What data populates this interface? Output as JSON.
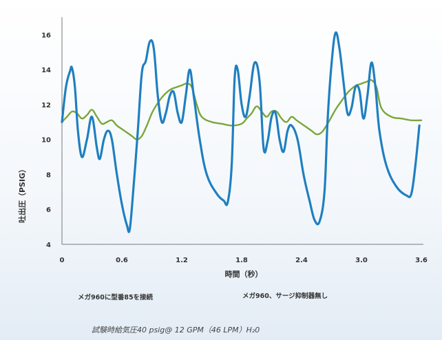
{
  "chart_data": {
    "type": "line",
    "xlabel": "時間（秒）",
    "ylabel": "吐出圧（PSIG）",
    "xlim": [
      0,
      3.6
    ],
    "ylim": [
      4,
      17
    ],
    "x_ticks": [
      "0",
      "0.6",
      "1.2",
      "1.8",
      "2.4",
      "3.0",
      "3.6"
    ],
    "y_ticks": [
      "4",
      "6",
      "8",
      "10",
      "12",
      "14",
      "16"
    ],
    "grid": false,
    "series": [
      {
        "name": "メガ960に型番85を接続",
        "color": "#7aa53a",
        "x": [
          0,
          0.05,
          0.1,
          0.15,
          0.2,
          0.25,
          0.3,
          0.35,
          0.4,
          0.45,
          0.5,
          0.55,
          0.6,
          0.65,
          0.7,
          0.75,
          0.8,
          0.85,
          0.9,
          0.95,
          1.0,
          1.05,
          1.1,
          1.15,
          1.2,
          1.25,
          1.3,
          1.35,
          1.4,
          1.5,
          1.6,
          1.7,
          1.8,
          1.85,
          1.9,
          1.95,
          2.0,
          2.05,
          2.1,
          2.15,
          2.2,
          2.25,
          2.3,
          2.35,
          2.4,
          2.45,
          2.5,
          2.55,
          2.6,
          2.65,
          2.7,
          2.75,
          2.8,
          2.85,
          2.9,
          2.95,
          3.0,
          3.05,
          3.1,
          3.15,
          3.2,
          3.3,
          3.4,
          3.5,
          3.6
        ],
        "values": [
          11.0,
          11.3,
          11.6,
          11.5,
          11.2,
          11.4,
          11.7,
          11.3,
          10.9,
          11.0,
          11.1,
          10.8,
          10.6,
          10.4,
          10.2,
          10.0,
          10.2,
          10.8,
          11.5,
          12.0,
          12.4,
          12.7,
          12.9,
          13.0,
          13.1,
          13.2,
          13.0,
          12.0,
          11.3,
          11.0,
          10.9,
          10.8,
          10.9,
          11.2,
          11.5,
          11.9,
          11.6,
          11.3,
          11.6,
          11.6,
          11.2,
          11.0,
          11.3,
          11.1,
          10.9,
          10.7,
          10.5,
          10.3,
          10.4,
          10.8,
          11.3,
          11.8,
          12.2,
          12.6,
          12.9,
          13.1,
          13.2,
          13.3,
          13.4,
          13.0,
          11.8,
          11.3,
          11.2,
          11.1,
          11.1
        ]
      },
      {
        "name": "メガ960、サージ抑制器無し",
        "color": "#1f7fc0",
        "x": [
          0,
          0.04,
          0.08,
          0.1,
          0.13,
          0.16,
          0.2,
          0.25,
          0.3,
          0.35,
          0.38,
          0.42,
          0.46,
          0.5,
          0.55,
          0.6,
          0.65,
          0.68,
          0.72,
          0.76,
          0.8,
          0.84,
          0.88,
          0.92,
          0.96,
          1.0,
          1.04,
          1.08,
          1.12,
          1.16,
          1.2,
          1.24,
          1.28,
          1.32,
          1.38,
          1.45,
          1.55,
          1.62,
          1.66,
          1.7,
          1.73,
          1.76,
          1.8,
          1.84,
          1.88,
          1.93,
          1.98,
          2.02,
          2.06,
          2.1,
          2.14,
          2.18,
          2.22,
          2.26,
          2.3,
          2.36,
          2.42,
          2.48,
          2.53,
          2.58,
          2.63,
          2.66,
          2.7,
          2.74,
          2.78,
          2.82,
          2.86,
          2.9,
          2.94,
          2.98,
          3.02,
          3.06,
          3.1,
          3.14,
          3.18,
          3.25,
          3.35,
          3.45,
          3.5,
          3.54,
          3.58
        ],
        "values": [
          11.0,
          13.0,
          13.9,
          14.1,
          13.0,
          10.5,
          9.0,
          10.0,
          11.3,
          9.5,
          8.9,
          10.0,
          10.5,
          10.0,
          8.0,
          6.3,
          5.1,
          4.9,
          7.5,
          10.5,
          13.8,
          14.5,
          15.6,
          15.2,
          12.5,
          11.0,
          11.5,
          12.5,
          12.7,
          11.5,
          11.0,
          12.5,
          14.0,
          12.5,
          10.0,
          8.0,
          6.9,
          6.5,
          6.4,
          8.5,
          13.5,
          14.0,
          12.0,
          11.3,
          12.5,
          14.4,
          13.3,
          9.5,
          9.9,
          11.3,
          11.5,
          10.0,
          9.3,
          10.5,
          10.8,
          10.0,
          8.0,
          6.5,
          5.4,
          5.3,
          7.0,
          11.0,
          14.3,
          16.1,
          15.2,
          13.3,
          11.5,
          11.8,
          13.0,
          12.8,
          11.2,
          12.5,
          14.4,
          13.0,
          10.5,
          8.5,
          7.3,
          6.8,
          6.9,
          8.5,
          10.8
        ]
      }
    ]
  },
  "footnote": "試験時給気圧40 psig@ 12 GPM（46 LPM）H₂0"
}
